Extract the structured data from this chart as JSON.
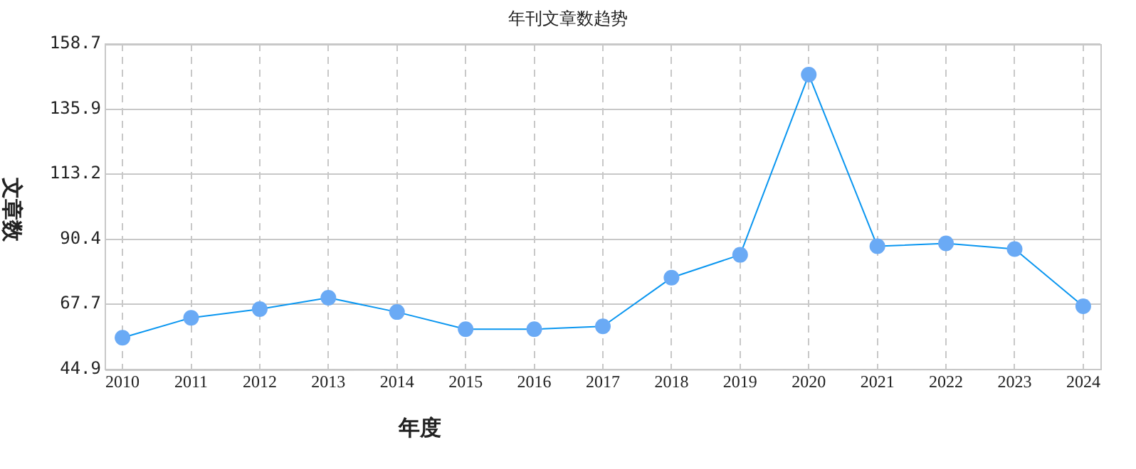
{
  "chart_data": {
    "type": "line",
    "title": "年刊文章数趋势",
    "xlabel": "年度",
    "ylabel": "文章数",
    "categories": [
      "2010",
      "2011",
      "2012",
      "2013",
      "2014",
      "2015",
      "2016",
      "2017",
      "2018",
      "2019",
      "2020",
      "2021",
      "2022",
      "2023",
      "2024"
    ],
    "series": [
      {
        "color": "#0a96f0",
        "values": [
          56,
          63,
          66,
          70,
          65,
          59,
          59,
          60,
          77,
          85,
          148,
          88,
          89,
          87,
          67
        ]
      }
    ],
    "ylim": [
      44.9,
      158.7
    ],
    "yticks": [
      44.9,
      67.7,
      90.4,
      113.2,
      135.9,
      158.7
    ],
    "grid": true,
    "legend": false,
    "marker": "circle",
    "line_style": "solid"
  }
}
